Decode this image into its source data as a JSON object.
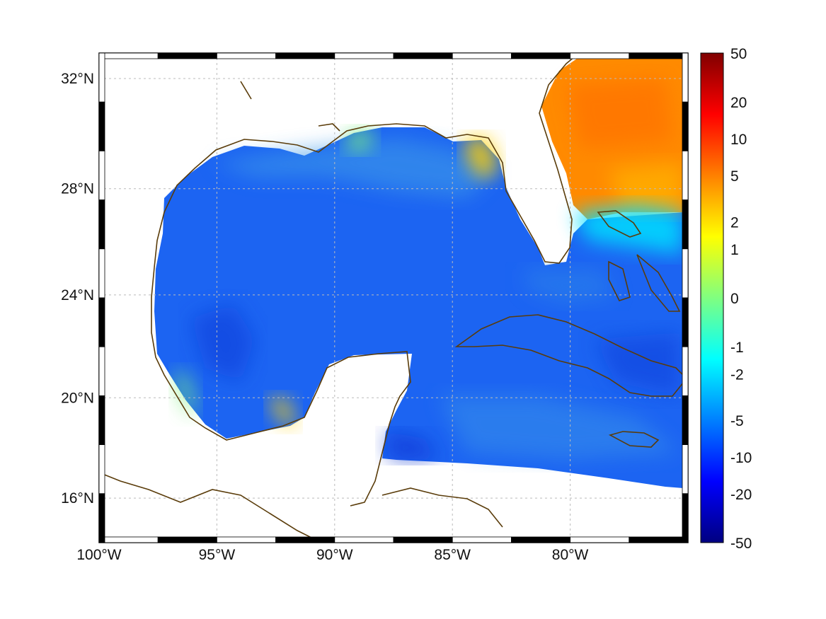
{
  "map": {
    "projection": "mercator",
    "lon_range": [
      -100,
      -75
    ],
    "lat_range": [
      14.2,
      32.9
    ],
    "lon_ticks": [
      {
        "value": -100,
        "label": "100°W"
      },
      {
        "value": -95,
        "label": "95°W"
      },
      {
        "value": -90,
        "label": "90°W"
      },
      {
        "value": -85,
        "label": "85°W"
      },
      {
        "value": -80,
        "label": "80°W"
      }
    ],
    "lat_ticks": [
      {
        "value": 32,
        "label": "32°N"
      },
      {
        "value": 28,
        "label": "28°N"
      },
      {
        "value": 24,
        "label": "24°N"
      },
      {
        "value": 20,
        "label": "20°N"
      },
      {
        "value": 16,
        "label": "16°N"
      }
    ],
    "grid": true,
    "coastline_color": "#5a3c0a",
    "field_layer": "gridded scalar field, mostly negative over the Gulf of Mexico and Caribbean, positive off the US east coast"
  },
  "colorbar": {
    "colormap": "jet",
    "scale": "nonlinear",
    "ticks": [
      "50",
      "20",
      "10",
      "5",
      "2",
      "1",
      "0",
      "-1",
      "-2",
      "-5",
      "-10",
      "-20",
      "-50"
    ],
    "stops": [
      "#800000",
      "#ff0000",
      "#ff8000",
      "#ffff00",
      "#80ff80",
      "#00ffff",
      "#0080ff",
      "#0000ff",
      "#000080"
    ]
  }
}
